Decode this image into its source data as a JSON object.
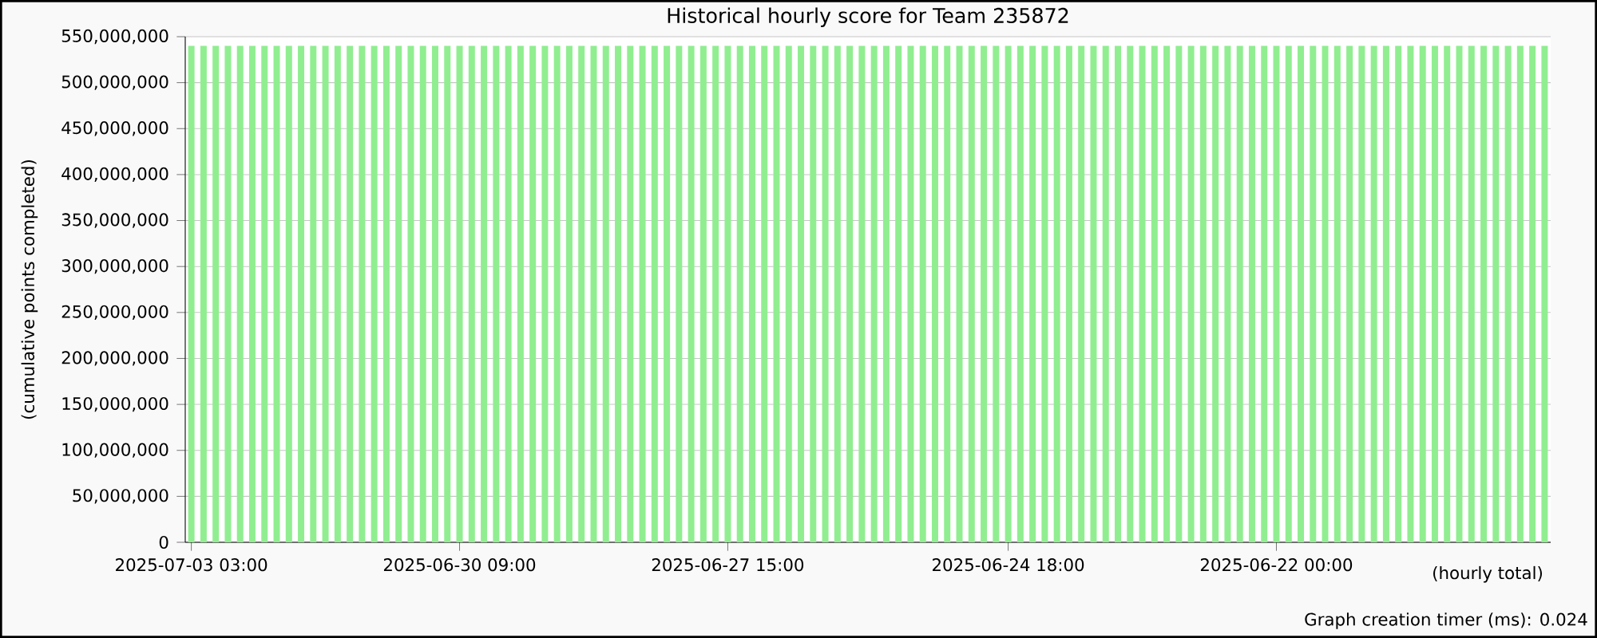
{
  "chart_data": {
    "type": "bar",
    "title": "Historical hourly score for Team 235872",
    "ylabel": "(cumulative points completed)",
    "xlabel": "(hourly total)",
    "annotations": [
      "Graph creation timer (ms): 0.024"
    ],
    "categories": [
      "2025-07-03 03:00",
      null,
      null,
      null,
      null,
      null,
      null,
      null,
      null,
      null,
      null,
      null,
      null,
      null,
      null,
      null,
      null,
      null,
      null,
      null,
      null,
      null,
      "2025-06-30 09:00",
      null,
      null,
      null,
      null,
      null,
      null,
      null,
      null,
      null,
      null,
      null,
      null,
      null,
      null,
      null,
      null,
      null,
      null,
      null,
      null,
      null,
      "2025-06-27 15:00",
      null,
      null,
      null,
      null,
      null,
      null,
      null,
      null,
      null,
      null,
      null,
      null,
      null,
      null,
      null,
      null,
      null,
      null,
      null,
      null,
      null,
      null,
      "2025-06-24 18:00",
      null,
      null,
      null,
      null,
      null,
      null,
      null,
      null,
      null,
      null,
      null,
      null,
      null,
      null,
      null,
      null,
      null,
      null,
      null,
      null,
      null,
      "2025-06-22 00:00",
      null,
      null,
      null,
      null,
      null,
      null,
      null,
      null,
      null,
      null,
      null,
      null,
      null,
      null,
      null,
      null,
      null,
      null,
      null,
      null,
      null,
      null
    ],
    "values": [
      540000000,
      540000000,
      540000000,
      540000000,
      540000000,
      540000000,
      540000000,
      540000000,
      540000000,
      540000000,
      540000000,
      540000000,
      540000000,
      540000000,
      540000000,
      540000000,
      540000000,
      540000000,
      540000000,
      540000000,
      540000000,
      540000000,
      540000000,
      540000000,
      540000000,
      540000000,
      540000000,
      540000000,
      540000000,
      540000000,
      540000000,
      540000000,
      540000000,
      540000000,
      540000000,
      540000000,
      540000000,
      540000000,
      540000000,
      540000000,
      540000000,
      540000000,
      540000000,
      540000000,
      540000000,
      540000000,
      540000000,
      540000000,
      540000000,
      540000000,
      540000000,
      540000000,
      540000000,
      540000000,
      540000000,
      540000000,
      540000000,
      540000000,
      540000000,
      540000000,
      540000000,
      540000000,
      540000000,
      540000000,
      540000000,
      540000000,
      540000000,
      540000000,
      540000000,
      540000000,
      540000000,
      540000000,
      540000000,
      540000000,
      540000000,
      540000000,
      540000000,
      540000000,
      540000000,
      540000000,
      540000000,
      540000000,
      540000000,
      540000000,
      540000000,
      540000000,
      540000000,
      540000000,
      540000000,
      540000000,
      540000000,
      540000000,
      540000000,
      540000000,
      540000000,
      540000000,
      540000000,
      540000000,
      540000000,
      540000000,
      540000000,
      540000000,
      540000000,
      540000000,
      540000000,
      540000000,
      540000000,
      540000000,
      540000000,
      540000000,
      540000000,
      540000000
    ],
    "color": "#90ee90",
    "ylim": [
      0,
      550000000
    ],
    "yticks": [
      0,
      {
        "value": 50000000,
        "label": "50,000,000"
      },
      {
        "value": 100000000,
        "label": "100,000,000"
      },
      {
        "value": 150000000,
        "label": "150,000,000"
      },
      {
        "value": 200000000,
        "label": "200,000,000"
      },
      {
        "value": 250000000,
        "label": "250,000,000"
      },
      {
        "value": 300000000,
        "label": "300,000,000"
      },
      {
        "value": 350000000,
        "label": "350,000,000"
      },
      {
        "value": 400000000,
        "label": "400,000,000"
      },
      {
        "value": 450000000,
        "label": "450,000,000"
      },
      {
        "value": 500000000,
        "label": "500,000,000"
      },
      {
        "value": 550000000,
        "label": "550,000,000"
      }
    ],
    "grid": "y"
  }
}
